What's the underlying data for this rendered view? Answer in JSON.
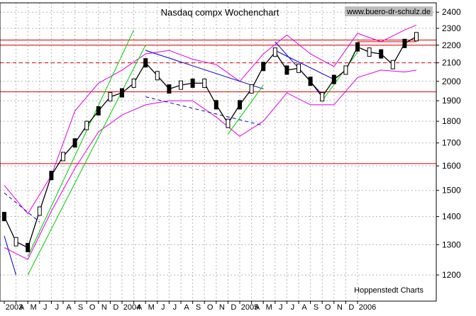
{
  "chart_data": {
    "type": "line",
    "title": "Nasdaq compx Wochenchart",
    "source_label": "www.buero-dr-schulz.de",
    "credit": "Hoppenstedt Charts",
    "y_scale": "log",
    "ylim": [
      1120,
      2460
    ],
    "y_ticks": [
      1200,
      1300,
      1400,
      1500,
      1600,
      1700,
      1800,
      1900,
      2000,
      2100,
      2200,
      2300,
      2400
    ],
    "x_range": [
      "2003-01",
      "2006-01"
    ],
    "x_tick_labels": [
      "2003",
      "A",
      "M",
      "J",
      "J",
      "A",
      "S",
      "O",
      "N",
      "D",
      "2004",
      "A",
      "M",
      "J",
      "J",
      "A",
      "S",
      "O",
      "N",
      "D",
      "2005",
      "A",
      "M",
      "J",
      "J",
      "A",
      "S",
      "O",
      "N",
      "D",
      "2006"
    ],
    "grid": true,
    "colors": {
      "price": "#000000",
      "bands": "#e000e0",
      "support_resistance": "#e00000",
      "trend_up": "#00cc00",
      "trend_down": "#0000cc"
    },
    "price_series": {
      "name": "Nasdaq Composite",
      "x": [
        "2003-01",
        "2003-02",
        "2003-03",
        "2003-04",
        "2003-05",
        "2003-06",
        "2003-07",
        "2003-08",
        "2003-09",
        "2003-10",
        "2003-11",
        "2003-12",
        "2004-01",
        "2004-02",
        "2004-03",
        "2004-04",
        "2004-05",
        "2004-06",
        "2004-07",
        "2004-08",
        "2004-09",
        "2004-10",
        "2004-11",
        "2004-12",
        "2005-01",
        "2005-02",
        "2005-03",
        "2005-04",
        "2005-05",
        "2005-06",
        "2005-07",
        "2005-08",
        "2005-09",
        "2005-10",
        "2005-11",
        "2005-12"
      ],
      "y": [
        1400,
        1310,
        1290,
        1420,
        1560,
        1640,
        1700,
        1780,
        1850,
        1920,
        1940,
        1990,
        2100,
        2030,
        1960,
        1980,
        1990,
        1990,
        1880,
        1790,
        1880,
        1960,
        2080,
        2160,
        2060,
        2070,
        2000,
        1920,
        2010,
        2060,
        2190,
        2160,
        2150,
        2090,
        2210,
        2250
      ]
    },
    "upper_band": {
      "x": [
        "2003-01",
        "2003-03",
        "2003-05",
        "2003-07",
        "2003-09",
        "2003-11",
        "2004-01",
        "2004-03",
        "2004-05",
        "2004-07",
        "2004-09",
        "2004-11",
        "2005-01",
        "2005-03",
        "2005-05",
        "2005-07",
        "2005-09",
        "2005-11",
        "2005-12"
      ],
      "y": [
        1520,
        1410,
        1560,
        1850,
        1990,
        2060,
        2150,
        2170,
        2120,
        2090,
        2000,
        2150,
        2260,
        2150,
        2080,
        2270,
        2220,
        2290,
        2320
      ]
    },
    "lower_band": {
      "x": [
        "2003-01",
        "2003-03",
        "2003-05",
        "2003-07",
        "2003-09",
        "2003-11",
        "2004-01",
        "2004-03",
        "2004-05",
        "2004-07",
        "2004-09",
        "2004-11",
        "2005-01",
        "2005-03",
        "2005-05",
        "2005-07",
        "2005-09",
        "2005-11",
        "2005-12"
      ],
      "y": [
        1290,
        1250,
        1420,
        1590,
        1750,
        1830,
        1880,
        1900,
        1900,
        1820,
        1730,
        1800,
        1940,
        1880,
        1880,
        2020,
        2060,
        2050,
        2060
      ]
    },
    "horizontal_lines": [
      {
        "y": 2200,
        "style": "solid"
      },
      {
        "y": 2230,
        "style": "solid"
      },
      {
        "y": 2100,
        "style": "dashed"
      },
      {
        "y": 1945,
        "style": "solid"
      },
      {
        "y": 1610,
        "style": "solid"
      }
    ],
    "trend_lines": [
      {
        "color": "trend_up",
        "style": "solid",
        "from": [
          "2003-03",
          1260
        ],
        "to": [
          "2003-12",
          2290
        ]
      },
      {
        "color": "trend_up",
        "style": "solid",
        "from": [
          "2003-03",
          1200
        ],
        "to": [
          "2004-01",
          2200
        ]
      },
      {
        "color": "trend_down",
        "style": "solid",
        "from": [
          "2004-01",
          2170
        ],
        "to": [
          "2004-11",
          1960
        ]
      },
      {
        "color": "trend_down",
        "style": "dashed",
        "from": [
          "2004-01",
          1920
        ],
        "to": [
          "2004-11",
          1780
        ]
      },
      {
        "color": "trend_up",
        "style": "solid",
        "from": [
          "2004-08",
          1740
        ],
        "to": [
          "2004-11",
          1980
        ]
      },
      {
        "color": "trend_down",
        "style": "solid",
        "from": [
          "2004-12",
          2220
        ],
        "to": [
          "2005-04",
          1930
        ]
      },
      {
        "color": "trend_down",
        "style": "solid",
        "from": [
          "2004-12",
          2170
        ],
        "to": [
          "2005-05",
          2010
        ]
      },
      {
        "color": "trend_up",
        "style": "solid",
        "from": [
          "2005-04",
          1900
        ],
        "to": [
          "2005-07",
          2160
        ]
      },
      {
        "color": "trend_down",
        "style": "dashed",
        "from": [
          "2003-01",
          1490
        ],
        "to": [
          "2003-04",
          1380
        ]
      },
      {
        "color": "trend_down",
        "style": "solid",
        "from": [
          "2003-01",
          1330
        ],
        "to": [
          "2003-02",
          1200
        ]
      },
      {
        "color": "support_resistance",
        "style": "solid",
        "from": [
          "2005-07",
          2220
        ],
        "to": [
          "2005-12",
          2220
        ]
      }
    ]
  }
}
